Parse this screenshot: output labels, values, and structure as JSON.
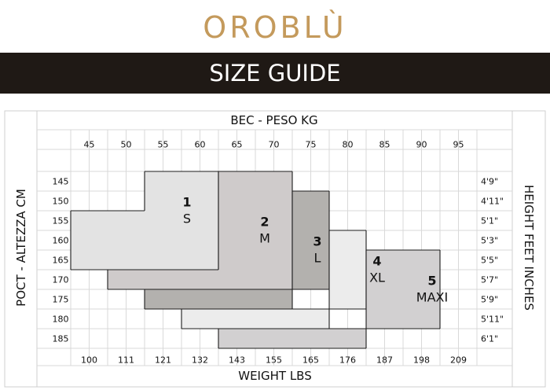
{
  "brand": {
    "logo_text": "OROBLÙ"
  },
  "banner": {
    "title": "SIZE GUIDE"
  },
  "chart_data": {
    "type": "table",
    "top_axis_title": "BEC - PESO KG",
    "bottom_axis_title": "WEIGHT LBS",
    "left_axis_title": "POCT - ALTEZZA CM",
    "right_axis_title": "HEIGHT FEET INCHES",
    "weight_kg": [
      "45",
      "50",
      "55",
      "60",
      "65",
      "70",
      "75",
      "80",
      "85",
      "90",
      "95"
    ],
    "weight_lbs": [
      "100",
      "111",
      "121",
      "132",
      "143",
      "155",
      "165",
      "176",
      "187",
      "198",
      "209"
    ],
    "height_cm": [
      "145",
      "150",
      "155",
      "160",
      "165",
      "170",
      "175",
      "180",
      "185"
    ],
    "height_ft": [
      "4'9\"",
      "4'11\"",
      "5'1\"",
      "5'3\"",
      "5'5\"",
      "5'7\"",
      "5'9\"",
      "5'11\"",
      "6'1\""
    ],
    "sizes": [
      {
        "num": "1",
        "label": "S",
        "color": "#e3e3e3",
        "region": [
          [
            145,
            55,
            65
          ],
          [
            150,
            55,
            65
          ],
          [
            155,
            45,
            65
          ],
          [
            160,
            45,
            65
          ],
          [
            165,
            45,
            65
          ]
        ]
      },
      {
        "num": "2",
        "label": "M",
        "color": "#cfcbcb",
        "region": [
          [
            145,
            65,
            75
          ],
          [
            150,
            65,
            75
          ],
          [
            155,
            65,
            75
          ],
          [
            160,
            65,
            75
          ],
          [
            165,
            65,
            75
          ],
          [
            170,
            50,
            75
          ]
        ]
      },
      {
        "num": "3",
        "label": "L",
        "color": "#b3b1ae",
        "region": [
          [
            150,
            75,
            80
          ],
          [
            155,
            75,
            80
          ],
          [
            160,
            75,
            80
          ],
          [
            165,
            75,
            80
          ],
          [
            170,
            75,
            80
          ],
          [
            175,
            55,
            75
          ]
        ]
      },
      {
        "num": "4",
        "label": "XL",
        "color": "#ececec",
        "region": [
          [
            160,
            80,
            85
          ],
          [
            165,
            80,
            85
          ],
          [
            170,
            80,
            85
          ],
          [
            175,
            80,
            85
          ],
          [
            180,
            60,
            80
          ]
        ]
      },
      {
        "num": "5",
        "label": "MAXI",
        "color": "#d2d0d1",
        "region": [
          [
            165,
            85,
            95
          ],
          [
            170,
            85,
            95
          ],
          [
            175,
            85,
            95
          ],
          [
            180,
            85,
            95
          ],
          [
            185,
            65,
            85
          ]
        ]
      }
    ]
  }
}
